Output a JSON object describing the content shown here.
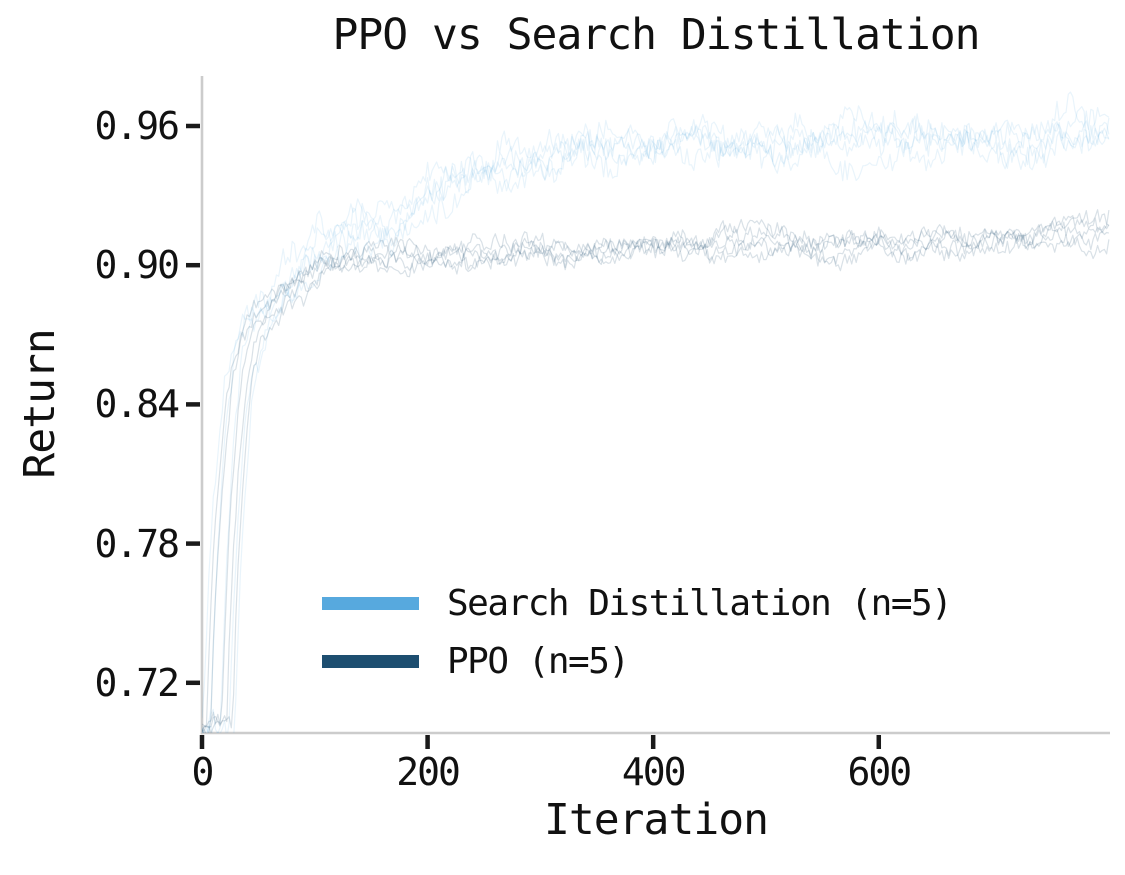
{
  "chart_data": {
    "type": "line",
    "title": "PPO vs Search Distillation",
    "xlabel": "Iteration",
    "ylabel": "Return",
    "xlim": [
      0,
      805
    ],
    "ylim": [
      0.698,
      0.982
    ],
    "xticks": [
      0,
      200,
      400,
      600
    ],
    "yticks": [
      0.72,
      0.78,
      0.84,
      0.9,
      0.96
    ],
    "grid": false,
    "legend_position": "lower-left-inside",
    "axis_color": "#cccccc",
    "tick_color": "#1a1a1a",
    "text_color": "#111111",
    "x": [
      0,
      3,
      6,
      10,
      15,
      20,
      25,
      30,
      40,
      50,
      60,
      75,
      90,
      110,
      130,
      150,
      175,
      200,
      225,
      250,
      275,
      300,
      325,
      350,
      375,
      400,
      425,
      450,
      475,
      500,
      525,
      550,
      575,
      600,
      625,
      650,
      675,
      700,
      725,
      750,
      775,
      800
    ],
    "series": [
      {
        "name": "Search Distillation (n=5)",
        "color": "#57a9de",
        "n_seeds": 5,
        "plot_opacity": 0.13,
        "noise_amplitude": 0.0085,
        "y": [
          0.7,
          0.735,
          0.768,
          0.8,
          0.826,
          0.848,
          0.858,
          0.866,
          0.876,
          0.883,
          0.889,
          0.896,
          0.902,
          0.908,
          0.914,
          0.919,
          0.924,
          0.929,
          0.934,
          0.938,
          0.941,
          0.944,
          0.947,
          0.949,
          0.95,
          0.951,
          0.952,
          0.952,
          0.953,
          0.953,
          0.953,
          0.954,
          0.954,
          0.954,
          0.954,
          0.955,
          0.955,
          0.955,
          0.955,
          0.956,
          0.956,
          0.956
        ]
      },
      {
        "name": "PPO (n=5)",
        "color": "#1d4e70",
        "n_seeds": 5,
        "plot_opacity": 0.17,
        "noise_amplitude": 0.0055,
        "y": [
          0.7,
          0.74,
          0.772,
          0.8,
          0.828,
          0.849,
          0.861,
          0.868,
          0.877,
          0.883,
          0.888,
          0.893,
          0.897,
          0.9,
          0.901,
          0.902,
          0.903,
          0.904,
          0.904,
          0.905,
          0.905,
          0.906,
          0.906,
          0.906,
          0.906,
          0.907,
          0.907,
          0.907,
          0.908,
          0.908,
          0.908,
          0.909,
          0.909,
          0.91,
          0.91,
          0.911,
          0.911,
          0.912,
          0.912,
          0.913,
          0.913,
          0.914
        ]
      }
    ]
  }
}
